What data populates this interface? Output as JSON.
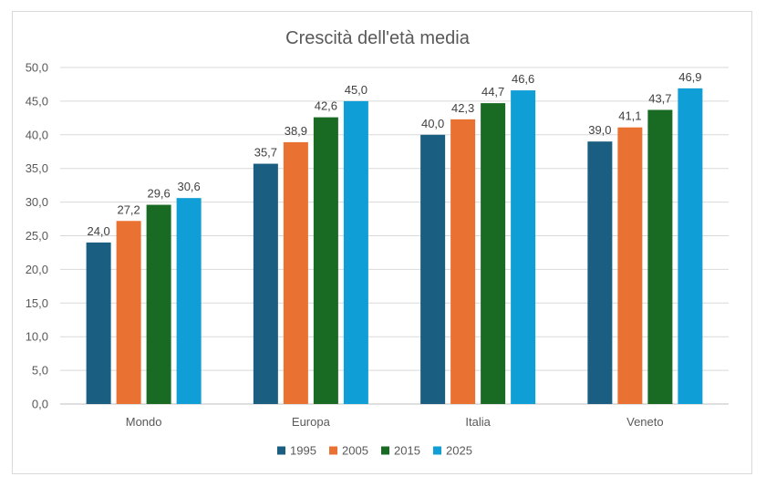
{
  "chart_data": {
    "type": "bar",
    "title": "Crescità dell'età media",
    "categories": [
      "Mondo",
      "Europa",
      "Italia",
      "Veneto"
    ],
    "series": [
      {
        "name": "1995",
        "color": "#1a5e82",
        "values": [
          24.0,
          35.7,
          40.0,
          39.0
        ],
        "labels": [
          "24,0",
          "35,7",
          "40,0",
          "39,0"
        ]
      },
      {
        "name": "2005",
        "color": "#e97132",
        "values": [
          27.2,
          38.9,
          42.3,
          41.1
        ],
        "labels": [
          "27,2",
          "38,9",
          "42,3",
          "41,1"
        ]
      },
      {
        "name": "2015",
        "color": "#196b24",
        "values": [
          29.6,
          42.6,
          44.7,
          43.7
        ],
        "labels": [
          "29,6",
          "42,6",
          "44,7",
          "43,7"
        ]
      },
      {
        "name": "2025",
        "color": "#0f9ed5",
        "values": [
          30.6,
          45.0,
          46.6,
          46.9
        ],
        "labels": [
          "30,6",
          "45,0",
          "46,6",
          "46,9"
        ]
      }
    ],
    "ylim": [
      0,
      50
    ],
    "yticks": [
      0,
      5,
      10,
      15,
      20,
      25,
      30,
      35,
      40,
      45,
      50
    ],
    "ytick_labels": [
      "0,0",
      "5,0",
      "10,0",
      "15,0",
      "20,0",
      "25,0",
      "30,0",
      "35,0",
      "40,0",
      "45,0",
      "50,0"
    ],
    "xlabel": "",
    "ylabel": "",
    "grid": true,
    "legend": "bottom-center"
  }
}
